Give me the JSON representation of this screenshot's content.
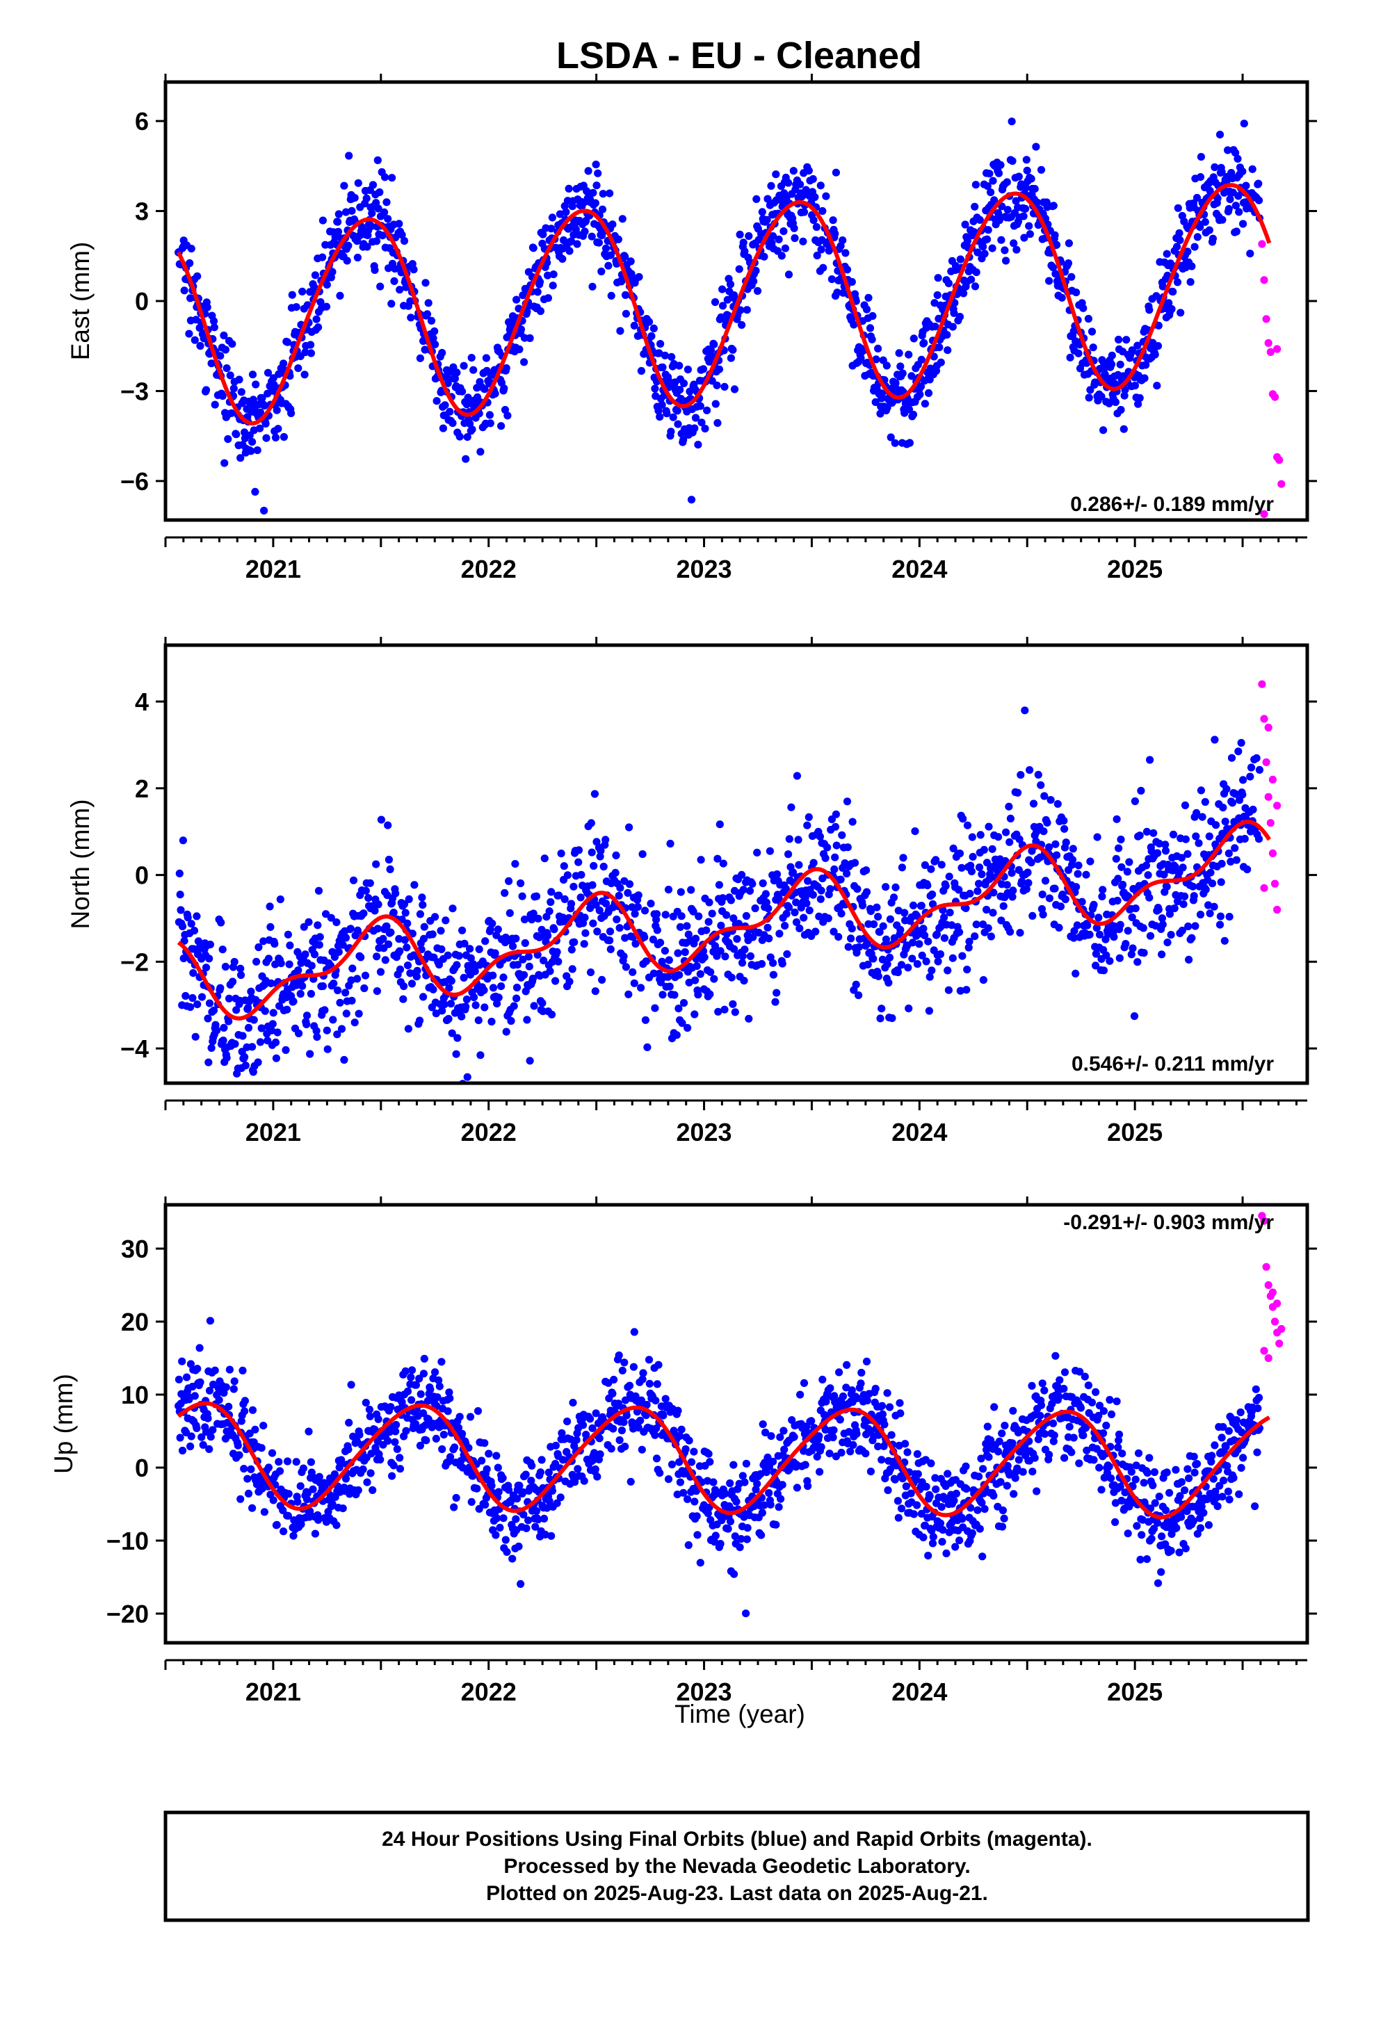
{
  "title": "LSDA  - EU - Cleaned",
  "caption": {
    "lines": [
      "24 Hour Positions Using Final Orbits (blue) and Rapid Orbits (magenta).",
      "Processed by the Nevada Geodetic Laboratory.",
      "Plotted on 2025-Aug-23. Last data on 2025-Aug-21."
    ]
  },
  "colors": {
    "final_orbits": "#0000ff",
    "rapid_orbits": "#ff00ff",
    "model_fit": "#ff0000",
    "frame": "#000000"
  },
  "chart_data": [
    {
      "type": "scatter",
      "ylabel": "East (mm)",
      "xlabel": "",
      "xlim": [
        2020.5,
        2025.8
      ],
      "ylim": [
        -7.3,
        7.3
      ],
      "x_ticks": [
        "2021",
        "2022",
        "2023",
        "2024",
        "2025"
      ],
      "y_ticks": [
        "6",
        "3",
        "0",
        "−3",
        "−6"
      ],
      "y_tick_values": [
        6,
        3,
        0,
        -3,
        -6
      ],
      "rate_text": "0.286+/- 0.189 mm/yr",
      "rate_mm_per_yr": 0.286,
      "rate_sigma": 0.189,
      "model": {
        "offset": 0.0,
        "annual_amp": 3.3,
        "annual_peak": 0.42,
        "semiannual_amp": 0.25,
        "semiannual_peak": 0.1
      },
      "scatter_sd": 0.75,
      "rapid_points": [
        {
          "x": 2025.59,
          "y": 1.9
        },
        {
          "x": 2025.6,
          "y": 0.7
        },
        {
          "x": 2025.61,
          "y": -0.6
        },
        {
          "x": 2025.62,
          "y": -1.4
        },
        {
          "x": 2025.63,
          "y": -1.7
        },
        {
          "x": 2025.64,
          "y": -3.1
        },
        {
          "x": 2025.65,
          "y": -3.2
        },
        {
          "x": 2025.66,
          "y": -5.2
        },
        {
          "x": 2025.67,
          "y": -5.3
        },
        {
          "x": 2025.68,
          "y": -6.1
        },
        {
          "x": 2025.6,
          "y": -7.1
        },
        {
          "x": 2025.66,
          "y": -1.6
        }
      ]
    },
    {
      "type": "scatter",
      "ylabel": "North (mm)",
      "xlabel": "",
      "xlim": [
        2020.5,
        2025.8
      ],
      "ylim": [
        -4.8,
        5.3
      ],
      "x_ticks": [
        "2021",
        "2022",
        "2023",
        "2024",
        "2025"
      ],
      "y_ticks": [
        "4",
        "2",
        "0",
        "−2",
        "−4"
      ],
      "y_tick_values": [
        4,
        2,
        0,
        -2,
        -4
      ],
      "rate_text": "0.546+/- 0.211 mm/yr",
      "rate_mm_per_yr": 0.546,
      "rate_sigma": 0.211,
      "model": {
        "offset": -1.2,
        "annual_amp": 0.75,
        "annual_peak": 0.45,
        "semiannual_amp": 0.4,
        "semiannual_peak": 0.05
      },
      "scatter_sd": 0.85,
      "rapid_points": [
        {
          "x": 2025.59,
          "y": 4.4
        },
        {
          "x": 2025.6,
          "y": 3.6
        },
        {
          "x": 2025.61,
          "y": 2.6
        },
        {
          "x": 2025.62,
          "y": 1.8
        },
        {
          "x": 2025.63,
          "y": 1.2
        },
        {
          "x": 2025.64,
          "y": 0.5
        },
        {
          "x": 2025.65,
          "y": -0.2
        },
        {
          "x": 2025.66,
          "y": -0.8
        },
        {
          "x": 2025.6,
          "y": -0.3
        },
        {
          "x": 2025.62,
          "y": 3.4
        },
        {
          "x": 2025.64,
          "y": 2.2
        },
        {
          "x": 2025.66,
          "y": 1.6
        }
      ]
    },
    {
      "type": "scatter",
      "ylabel": "Up (mm)",
      "xlabel": "Time (year)",
      "xlim": [
        2020.5,
        2025.8
      ],
      "ylim": [
        -24,
        36
      ],
      "x_ticks": [
        "2021",
        "2022",
        "2023",
        "2024",
        "2025"
      ],
      "y_ticks": [
        "30",
        "20",
        "10",
        "0",
        "−10",
        "−20"
      ],
      "y_tick_values": [
        30,
        20,
        10,
        0,
        -10,
        -20
      ],
      "rate_text": "-0.291+/- 0.903 mm/yr",
      "rate_mm_per_yr": -0.291,
      "rate_sigma": 0.903,
      "model": {
        "offset": 1.2,
        "annual_amp": 7.0,
        "annual_peak": 0.65,
        "semiannual_amp": 0.8,
        "semiannual_peak": 0.3
      },
      "scatter_sd": 3.3,
      "rapid_points": [
        {
          "x": 2025.59,
          "y": 34.5
        },
        {
          "x": 2025.6,
          "y": 33.8
        },
        {
          "x": 2025.61,
          "y": 27.5
        },
        {
          "x": 2025.62,
          "y": 25.0
        },
        {
          "x": 2025.63,
          "y": 23.5
        },
        {
          "x": 2025.64,
          "y": 22.0
        },
        {
          "x": 2025.65,
          "y": 20.0
        },
        {
          "x": 2025.66,
          "y": 18.5
        },
        {
          "x": 2025.67,
          "y": 17.0
        },
        {
          "x": 2025.6,
          "y": 16.0
        },
        {
          "x": 2025.62,
          "y": 15.0
        },
        {
          "x": 2025.64,
          "y": 24.0
        },
        {
          "x": 2025.66,
          "y": 22.5
        },
        {
          "x": 2025.68,
          "y": 19.0
        }
      ]
    }
  ]
}
